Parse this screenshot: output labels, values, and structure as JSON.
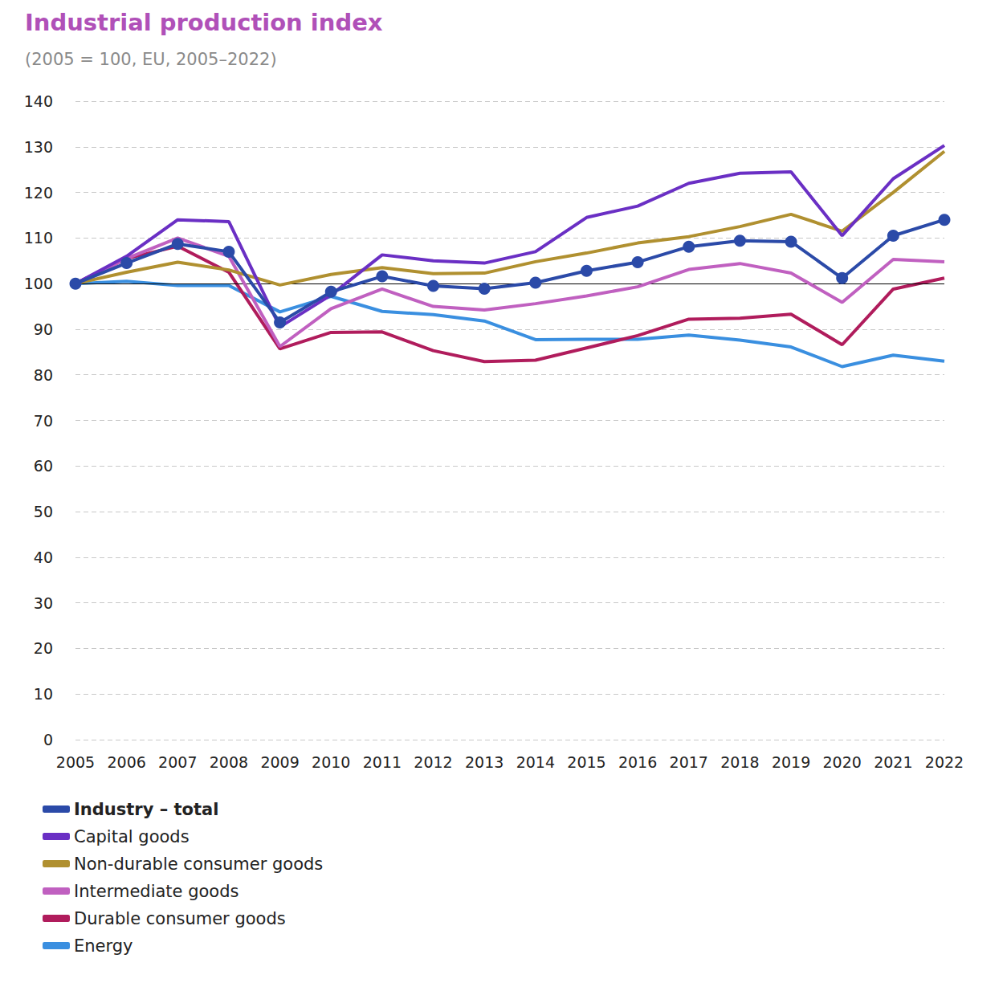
{
  "chart_data": {
    "type": "line",
    "title": "Industrial production index",
    "subtitle": "(2005 = 100, EU, 2005–2022)",
    "categories": [
      "2005",
      "2006",
      "2007",
      "2008",
      "2009",
      "2010",
      "2011",
      "2012",
      "2013",
      "2014",
      "2015",
      "2016",
      "2017",
      "2018",
      "2019",
      "2020",
      "2021",
      "2022"
    ],
    "series": [
      {
        "name": "Industry – total",
        "color": "#2b4aa8",
        "marker": "circle",
        "line_style": "solid",
        "values": [
          100,
          104.5,
          108.7,
          107,
          91.5,
          98.2,
          101.6,
          99.5,
          98.9,
          100.2,
          102.8,
          104.7,
          108.1,
          109.4,
          109.2,
          101.2,
          110.5,
          114
        ]
      },
      {
        "name": "Capital goods",
        "color": "#6a2fc4",
        "line_style": "solid",
        "values": [
          100,
          106,
          114,
          113.6,
          90.5,
          97.5,
          106.3,
          105,
          104.5,
          107,
          114.5,
          117,
          122,
          124.2,
          124.5,
          110.5,
          123,
          130.3
        ]
      },
      {
        "name": "Non-durable consumer goods",
        "color": "#b09030",
        "line_style": "solid",
        "values": [
          100,
          102.5,
          104.7,
          103,
          99.7,
          102,
          103.5,
          102.2,
          102.3,
          104.8,
          106.7,
          108.9,
          110.3,
          112.5,
          115.2,
          111.5,
          120,
          129
        ]
      },
      {
        "name": "Intermediate goods",
        "color": "#c060c0",
        "line_style": "solid",
        "values": [
          100,
          105.5,
          110,
          106,
          86.2,
          94.5,
          98.8,
          95,
          94.2,
          95.6,
          97.3,
          99.3,
          103.1,
          104.4,
          102.3,
          95.9,
          105.3,
          104.8
        ]
      },
      {
        "name": "Durable consumer goods",
        "color": "#b01c5c",
        "line_style": "solid",
        "values": [
          100,
          105.5,
          108.2,
          102.5,
          85.7,
          89.3,
          89.4,
          85.3,
          82.9,
          83.2,
          85.9,
          88.6,
          92.2,
          92.4,
          93.3,
          86.6,
          98.8,
          101.2
        ]
      },
      {
        "name": "Energy",
        "color": "#3a8fe0",
        "line_style": "solid",
        "values": [
          100,
          100.5,
          99.6,
          99.6,
          93.8,
          97.2,
          93.9,
          93.2,
          91.8,
          87.7,
          87.8,
          87.8,
          88.7,
          87.6,
          86.1,
          81.8,
          84.3,
          83
        ]
      }
    ],
    "reference_line": 100,
    "ylim": [
      0,
      140
    ],
    "yticks": [
      0,
      10,
      20,
      30,
      40,
      50,
      60,
      70,
      80,
      90,
      100,
      110,
      120,
      130,
      140
    ],
    "grid": true,
    "legend": "bottom-left"
  }
}
